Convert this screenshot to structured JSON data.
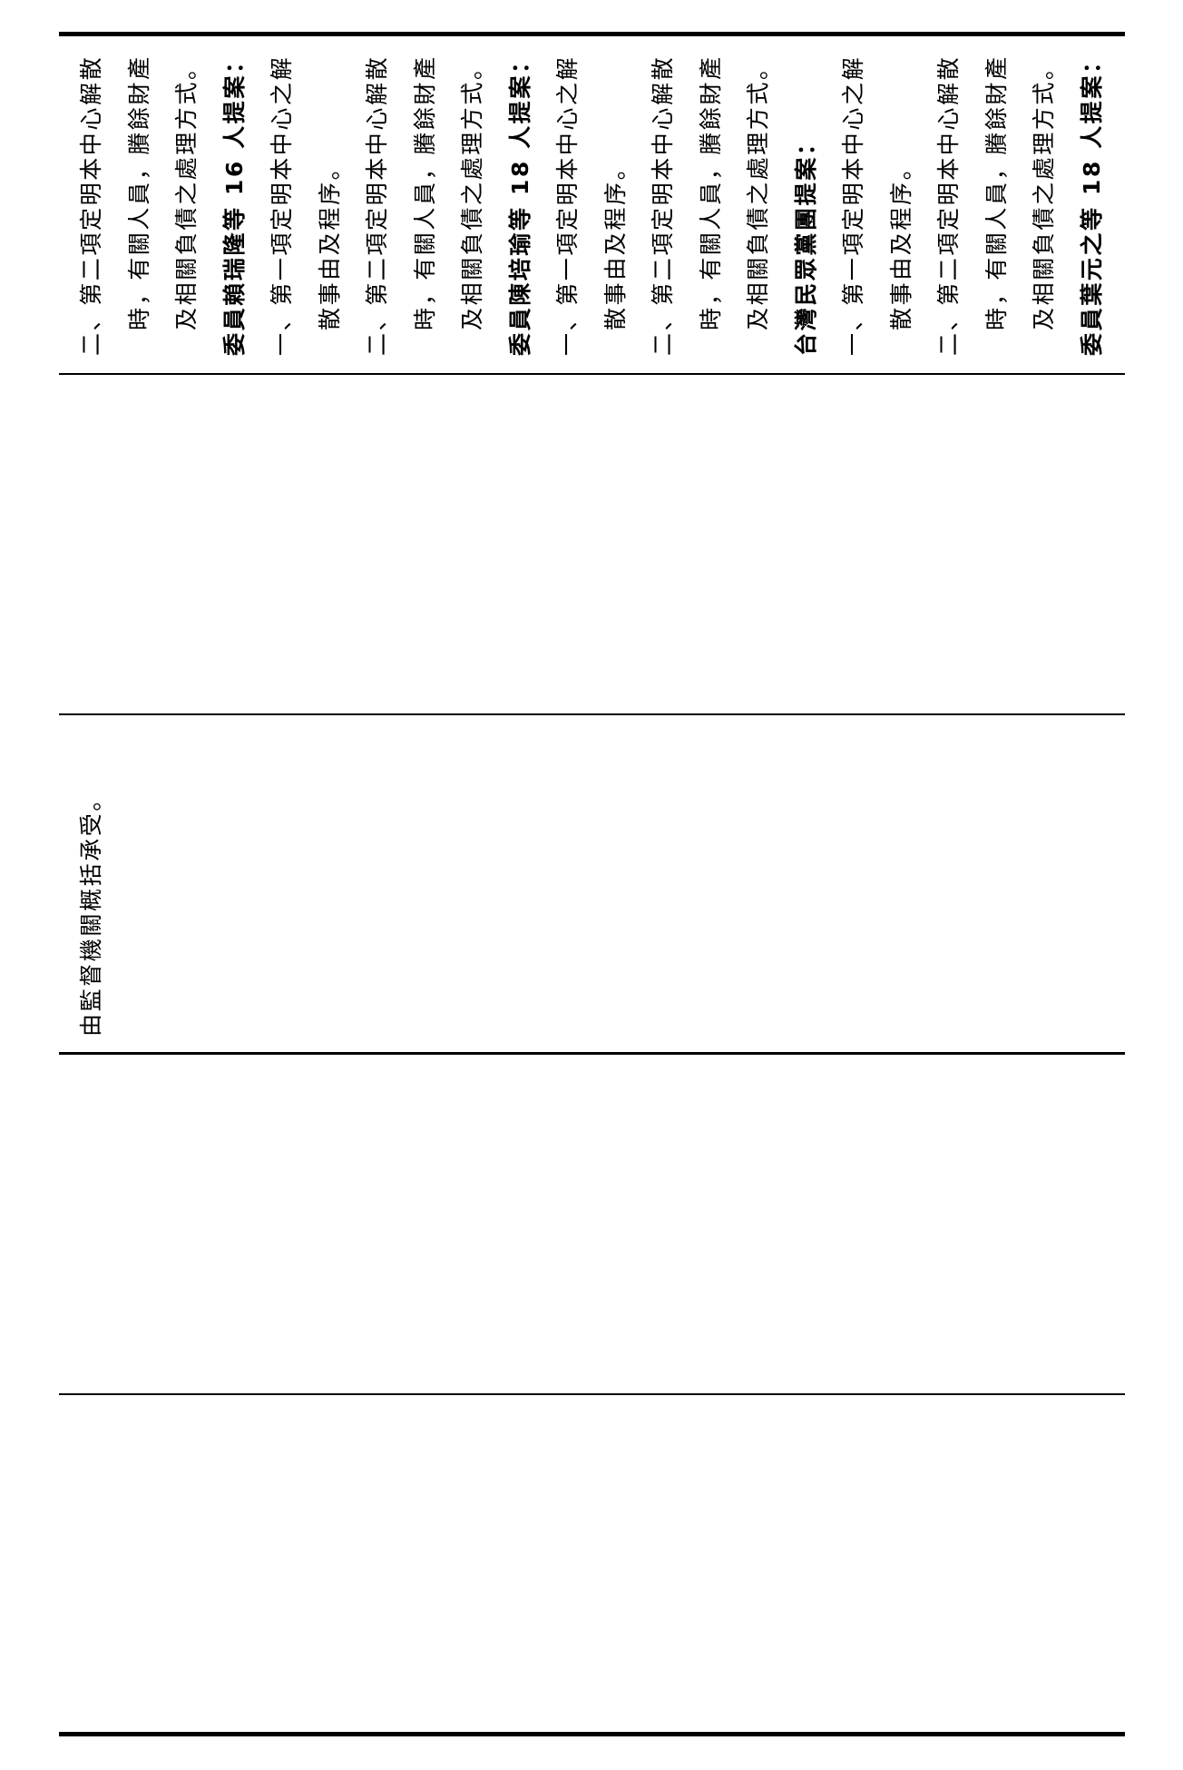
{
  "rows": [
    {
      "lines": [
        {
          "text": "二、第二項定明本中心解散",
          "indent": false,
          "bold": false
        },
        {
          "text": "時，有關人員，賸餘財產",
          "indent": true,
          "bold": false
        },
        {
          "text": "及相關負債之處理方式。",
          "indent": true,
          "bold": false
        },
        {
          "text": "委員賴瑞隆等 16 人提案：",
          "indent": false,
          "bold": true
        },
        {
          "text": "一、第一項定明本中心之解",
          "indent": false,
          "bold": false
        },
        {
          "text": "散事由及程序。",
          "indent": true,
          "bold": false
        },
        {
          "text": "二、第二項定明本中心解散",
          "indent": false,
          "bold": false
        },
        {
          "text": "時，有關人員，賸餘財產",
          "indent": true,
          "bold": false
        },
        {
          "text": "及相關負債之處理方式。",
          "indent": true,
          "bold": false
        },
        {
          "text": "委員陳培瑜等 18 人提案：",
          "indent": false,
          "bold": true
        },
        {
          "text": "一、第一項定明本中心之解",
          "indent": false,
          "bold": false
        },
        {
          "text": "散事由及程序。",
          "indent": true,
          "bold": false
        },
        {
          "text": "二、第二項定明本中心解散",
          "indent": false,
          "bold": false
        },
        {
          "text": "時，有關人員，賸餘財產",
          "indent": true,
          "bold": false
        },
        {
          "text": "及相關負債之處理方式。",
          "indent": true,
          "bold": false
        },
        {
          "text": "台灣民眾黨團提案：",
          "indent": false,
          "bold": true
        },
        {
          "text": "一、第一項定明本中心之解",
          "indent": false,
          "bold": false
        },
        {
          "text": "散事由及程序。",
          "indent": true,
          "bold": false
        },
        {
          "text": "二、第二項定明本中心解散",
          "indent": false,
          "bold": false
        },
        {
          "text": "時，有關人員，賸餘財產",
          "indent": true,
          "bold": false
        },
        {
          "text": "及相關負債之處理方式。",
          "indent": true,
          "bold": false
        },
        {
          "text": "委員葉元之等 18 人提案：",
          "indent": false,
          "bold": true
        }
      ]
    },
    {
      "lines": []
    },
    {
      "lines": [
        {
          "text": "由監督機關概括承受。",
          "indent": false,
          "bold": false
        }
      ]
    },
    {
      "lines": []
    },
    {
      "lines": []
    }
  ]
}
